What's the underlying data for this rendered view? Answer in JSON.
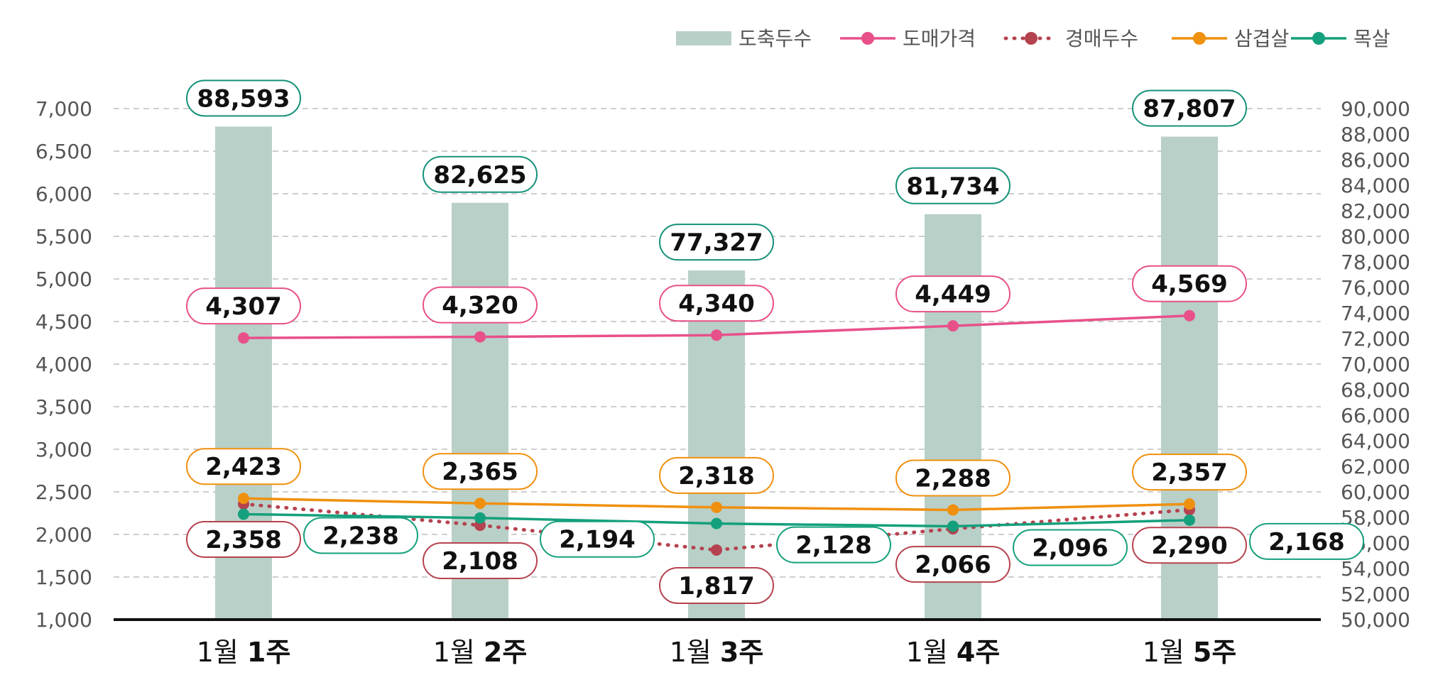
{
  "chart_data": {
    "type": "bar",
    "categories": [
      "1월 1주",
      "1월 2주",
      "1월 3주",
      "1월 4주",
      "1월 5주"
    ],
    "category_parts": [
      {
        "prefix": "1월 ",
        "emph": "1주"
      },
      {
        "prefix": "1월 ",
        "emph": "2주"
      },
      {
        "prefix": "1월 ",
        "emph": "3주"
      },
      {
        "prefix": "1월 ",
        "emph": "4주"
      },
      {
        "prefix": "1월 ",
        "emph": "5주"
      }
    ],
    "y_left": {
      "ylim": [
        1000,
        7000
      ],
      "ticks": [
        1000,
        1500,
        2000,
        2500,
        3000,
        3500,
        4000,
        4500,
        5000,
        5500,
        6000,
        6500,
        7000
      ],
      "tick_labels": [
        "1,000",
        "1,500",
        "2,000",
        "2,500",
        "3,000",
        "3,500",
        "4,000",
        "4,500",
        "5,000",
        "5,500",
        "6,000",
        "6,500",
        "7,000"
      ]
    },
    "y_right": {
      "ylim": [
        50000,
        90000
      ],
      "ticks": [
        50000,
        52000,
        54000,
        56000,
        58000,
        60000,
        62000,
        64000,
        66000,
        68000,
        70000,
        72000,
        74000,
        76000,
        78000,
        80000,
        82000,
        84000,
        86000,
        88000,
        90000
      ],
      "tick_labels": [
        "50,000",
        "52,000",
        "54,000",
        "56,000",
        "58,000",
        "60,000",
        "62,000",
        "64,000",
        "66,000",
        "68,000",
        "70,000",
        "72,000",
        "74,000",
        "76,000",
        "78,000",
        "80,000",
        "82,000",
        "84,000",
        "86,000",
        "88,000",
        "90,000"
      ]
    },
    "grid": true,
    "legend_position": "top-right",
    "series": [
      {
        "name": "도축두수",
        "type": "bar",
        "axis": "right",
        "color": "#b8d0c8",
        "values": [
          88593,
          82625,
          77327,
          81734,
          87807
        ],
        "labels": [
          "88,593",
          "82,625",
          "77,327",
          "81,734",
          "87,807"
        ]
      },
      {
        "name": "도매가격",
        "type": "line",
        "axis": "left",
        "color": "#e8508a",
        "values": [
          4307,
          4320,
          4340,
          4449,
          4569
        ],
        "labels": [
          "4,307",
          "4,320",
          "4,340",
          "4,449",
          "4,569"
        ]
      },
      {
        "name": "경매두수",
        "type": "line",
        "style": "dotted",
        "axis": "left",
        "color": "#b5424f",
        "values": [
          2358,
          2108,
          1817,
          2066,
          2290
        ],
        "labels": [
          "2,358",
          "2,108",
          "1,817",
          "2,066",
          "2,290"
        ]
      },
      {
        "name": "삼겹살",
        "type": "line",
        "axis": "left",
        "color": "#f0900f",
        "values": [
          2423,
          2365,
          2318,
          2288,
          2357
        ],
        "labels": [
          "2,423",
          "2,365",
          "2,318",
          "2,288",
          "2,357"
        ]
      },
      {
        "name": "목살",
        "type": "line",
        "axis": "left",
        "color": "#14a07c",
        "values": [
          2238,
          2194,
          2128,
          2096,
          2168
        ],
        "labels": [
          "2,238",
          "2,194",
          "2,128",
          "2,096",
          "2,168"
        ]
      }
    ]
  }
}
